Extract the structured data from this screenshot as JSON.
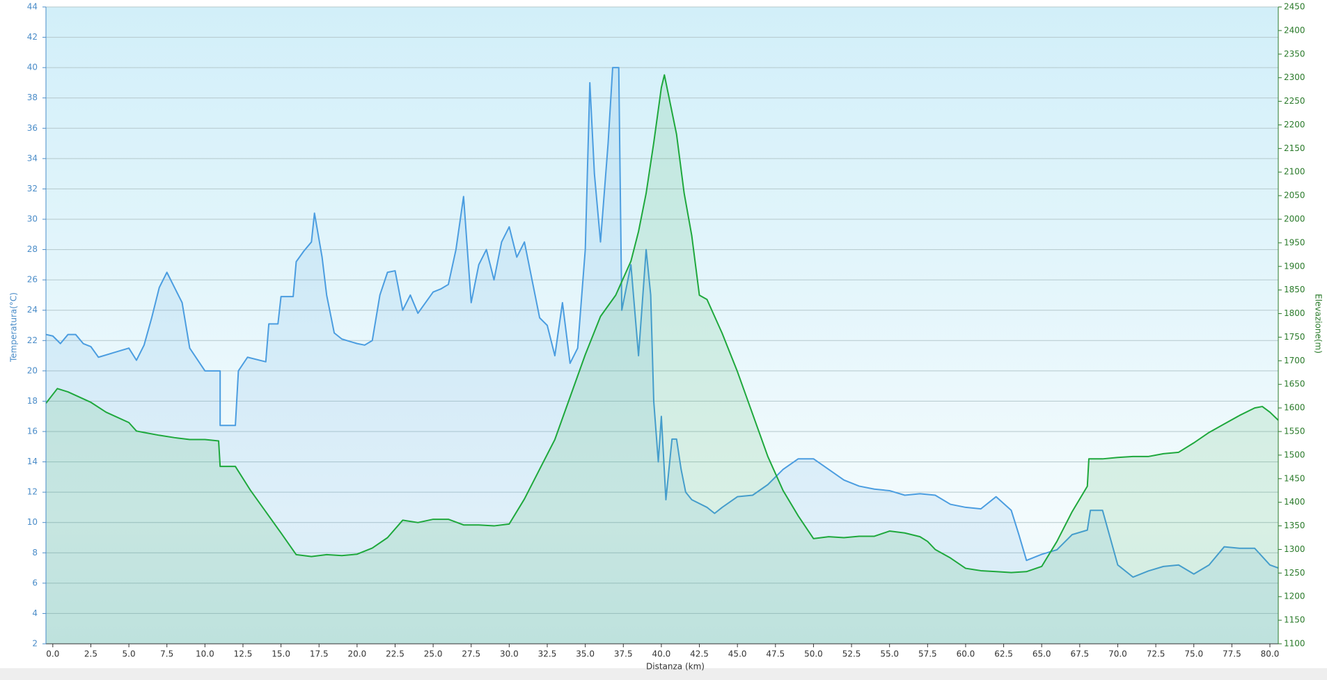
{
  "chart_data": {
    "type": "line",
    "x_label": "Distanza  (km)",
    "y_label": "Temperatura(°C)",
    "y2_label": "Elevazione(m)",
    "xlim": [
      -0.45,
      80.55
    ],
    "xticks": [
      {
        "value": 0,
        "label": "0.0"
      },
      2.5,
      {
        "value": 5,
        "label": "5.0"
      },
      7.5,
      {
        "value": 10,
        "label": "10.0"
      },
      12.5,
      {
        "value": 15,
        "label": "15.0"
      },
      17.5,
      {
        "value": 20,
        "label": "20.0"
      },
      22.5,
      {
        "value": 25,
        "label": "25.0"
      },
      27.5,
      {
        "value": 30,
        "label": "30.0"
      },
      32.5,
      {
        "value": 35,
        "label": "35.0"
      },
      37.5,
      {
        "value": 40,
        "label": "40.0"
      },
      42.5,
      {
        "value": 45,
        "label": "45.0"
      },
      47.5,
      {
        "value": 50,
        "label": "50.0"
      },
      52.5,
      {
        "value": 55,
        "label": "55.0"
      },
      57.5,
      {
        "value": 60,
        "label": "60.0"
      },
      62.5,
      {
        "value": 65,
        "label": "65.0"
      },
      67.5,
      {
        "value": 70,
        "label": "70.0"
      },
      72.5,
      {
        "value": 75,
        "label": "75.0"
      },
      77.5,
      {
        "value": 80,
        "label": "80.0"
      }
    ],
    "ylim": [
      2,
      44
    ],
    "yticks": [
      2,
      4,
      6,
      8,
      10,
      12,
      14,
      16,
      18,
      20,
      22,
      24,
      26,
      28,
      30,
      32,
      34,
      36,
      38,
      40,
      42,
      44
    ],
    "y2lim": [
      1100,
      2450
    ],
    "y2ticks": [
      1100,
      1150,
      1200,
      1250,
      1300,
      1350,
      1400,
      1450,
      1500,
      1550,
      1600,
      1650,
      1700,
      1750,
      1800,
      1850,
      1900,
      1950,
      2000,
      2050,
      2100,
      2150,
      2200,
      2250,
      2300,
      2350,
      2400,
      2450
    ],
    "grid": true,
    "series": [
      {
        "color": "#4b9de0",
        "axis": "y",
        "x": [
          -0.45,
          0,
          0.5,
          1,
          1.5,
          2,
          2.5,
          3,
          4,
          5,
          5.5,
          6,
          6.5,
          7,
          7.5,
          8,
          8.5,
          9,
          10,
          11,
          11,
          12,
          12.2,
          12.8,
          14,
          14.2,
          14.8,
          15,
          15.8,
          16,
          16.5,
          17,
          17.2,
          17.7,
          18,
          18.5,
          19,
          20,
          20.5,
          21,
          21.5,
          22,
          22.5,
          23,
          23.5,
          24,
          24.5,
          25,
          25.5,
          26,
          26.5,
          27,
          27.5,
          28,
          28.5,
          29,
          29.5,
          30,
          30.5,
          31,
          31.5,
          32,
          32.5,
          33,
          33.5,
          34,
          34.5,
          35,
          35.3,
          35.6,
          36,
          36.5,
          36.8,
          37.2,
          37.4,
          38,
          38.5,
          39,
          39.3,
          39.5,
          39.8,
          40,
          40.3,
          40.7,
          41,
          41.3,
          41.6,
          42,
          43,
          43.5,
          44,
          45,
          46,
          47,
          48,
          49,
          50,
          51,
          52,
          53,
          54,
          55,
          56,
          57,
          58,
          59,
          60,
          61,
          62,
          63,
          63.5,
          64,
          65,
          66,
          67,
          68,
          68.2,
          69,
          69.5,
          70,
          71,
          72,
          73,
          74,
          75,
          76,
          77,
          78,
          79,
          80,
          80.55
        ],
        "values": [
          22.4,
          22.3,
          21.8,
          22.4,
          22.4,
          21.8,
          21.6,
          20.9,
          21.2,
          21.5,
          20.7,
          21.7,
          23.5,
          25.5,
          26.5,
          25.5,
          24.5,
          21.5,
          20,
          20,
          16.4,
          16.4,
          20,
          20.9,
          20.6,
          23.1,
          23.1,
          24.9,
          24.9,
          27.2,
          27.9,
          28.5,
          30.4,
          27.5,
          25,
          22.5,
          22.1,
          21.8,
          21.7,
          22,
          25,
          26.5,
          26.6,
          24,
          25,
          23.8,
          24.5,
          25.2,
          25.4,
          25.7,
          28,
          31.5,
          24.5,
          27,
          28,
          26,
          28.5,
          29.5,
          27.5,
          28.5,
          26,
          23.5,
          23,
          21,
          24.5,
          20.5,
          21.5,
          28,
          39,
          33,
          28.5,
          35,
          40,
          40,
          24,
          27,
          21,
          28,
          25,
          18,
          14,
          17,
          11.5,
          15.5,
          15.5,
          13.5,
          12,
          11.5,
          11,
          10.6,
          11,
          11.7,
          11.8,
          12.5,
          13.5,
          14.2,
          14.2,
          13.5,
          12.8,
          12.4,
          12.2,
          12.1,
          11.8,
          11.9,
          11.8,
          11.2,
          11,
          10.9,
          11.7,
          10.8,
          9.2,
          7.5,
          7.9,
          8.2,
          9.2,
          9.5,
          10.8,
          10.8,
          9,
          7.2,
          6.4,
          6.8,
          7.1,
          7.2,
          6.6,
          7.2,
          8.4,
          8.3,
          8.3,
          7.2,
          7
        ]
      },
      {
        "color": "#1ea83c",
        "axis": "y2",
        "x": [
          -0.45,
          0.3,
          1,
          2.5,
          3.5,
          5,
          5.5,
          6,
          7,
          8,
          9,
          10,
          10.9,
          11,
          12,
          13,
          14,
          15,
          16,
          17,
          18,
          19,
          20,
          21,
          22,
          23,
          24,
          25,
          26,
          27,
          28,
          29,
          30,
          31,
          32,
          33,
          34,
          35,
          36,
          37,
          38,
          38.5,
          39,
          39.5,
          40,
          40.2,
          41,
          41.5,
          42,
          42.5,
          43,
          44,
          45,
          46,
          47,
          48,
          49,
          50,
          51,
          52,
          53,
          54,
          55,
          56,
          57,
          57.5,
          58,
          59,
          60,
          61,
          62,
          63,
          64,
          65,
          66,
          67,
          68,
          68.1,
          69,
          70,
          71,
          72,
          73,
          74,
          75,
          76,
          77,
          78,
          79,
          79.5,
          80,
          80.55
        ],
        "values": [
          1610,
          1641,
          1634,
          1612,
          1591,
          1569,
          1551,
          1548,
          1542,
          1537,
          1533,
          1533,
          1530,
          1476,
          1476,
          1425,
          1380,
          1335,
          1289,
          1285,
          1289,
          1287,
          1290,
          1303,
          1325,
          1362,
          1357,
          1364,
          1364,
          1352,
          1352,
          1350,
          1354,
          1407,
          1470,
          1533,
          1623,
          1713,
          1794,
          1839,
          1911,
          1974,
          2055,
          2162,
          2279,
          2306,
          2180,
          2055,
          1965,
          1839,
          1830,
          1758,
          1677,
          1587,
          1497,
          1425,
          1371,
          1323,
          1327,
          1325,
          1328,
          1328,
          1339,
          1335,
          1327,
          1317,
          1300,
          1282,
          1260,
          1255,
          1253,
          1251,
          1253,
          1264,
          1317,
          1380,
          1434,
          1492,
          1492,
          1495,
          1497,
          1497,
          1503,
          1506,
          1526,
          1548,
          1566,
          1584,
          1600,
          1603,
          1591,
          1574
        ]
      }
    ]
  }
}
